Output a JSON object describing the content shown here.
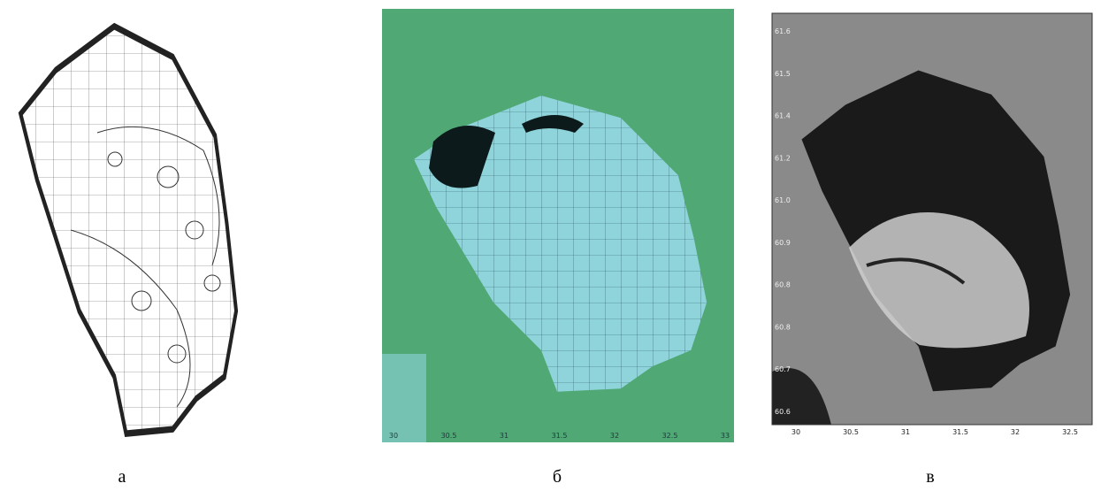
{
  "panels": [
    {
      "caption": "а"
    },
    {
      "caption": "б",
      "x_labels": [
        "30",
        "30.5",
        "31",
        "31.5",
        "32",
        "32.5",
        "33"
      ]
    },
    {
      "caption": "в",
      "x_labels": [
        "30",
        "30.5",
        "31",
        "31.5",
        "32",
        "32.5"
      ],
      "y_labels": [
        "61.6",
        "61.5",
        "61.4",
        "61.2",
        "61.0",
        "60.9",
        "60.8",
        "60.8",
        "60.7",
        "60.6"
      ]
    }
  ]
}
